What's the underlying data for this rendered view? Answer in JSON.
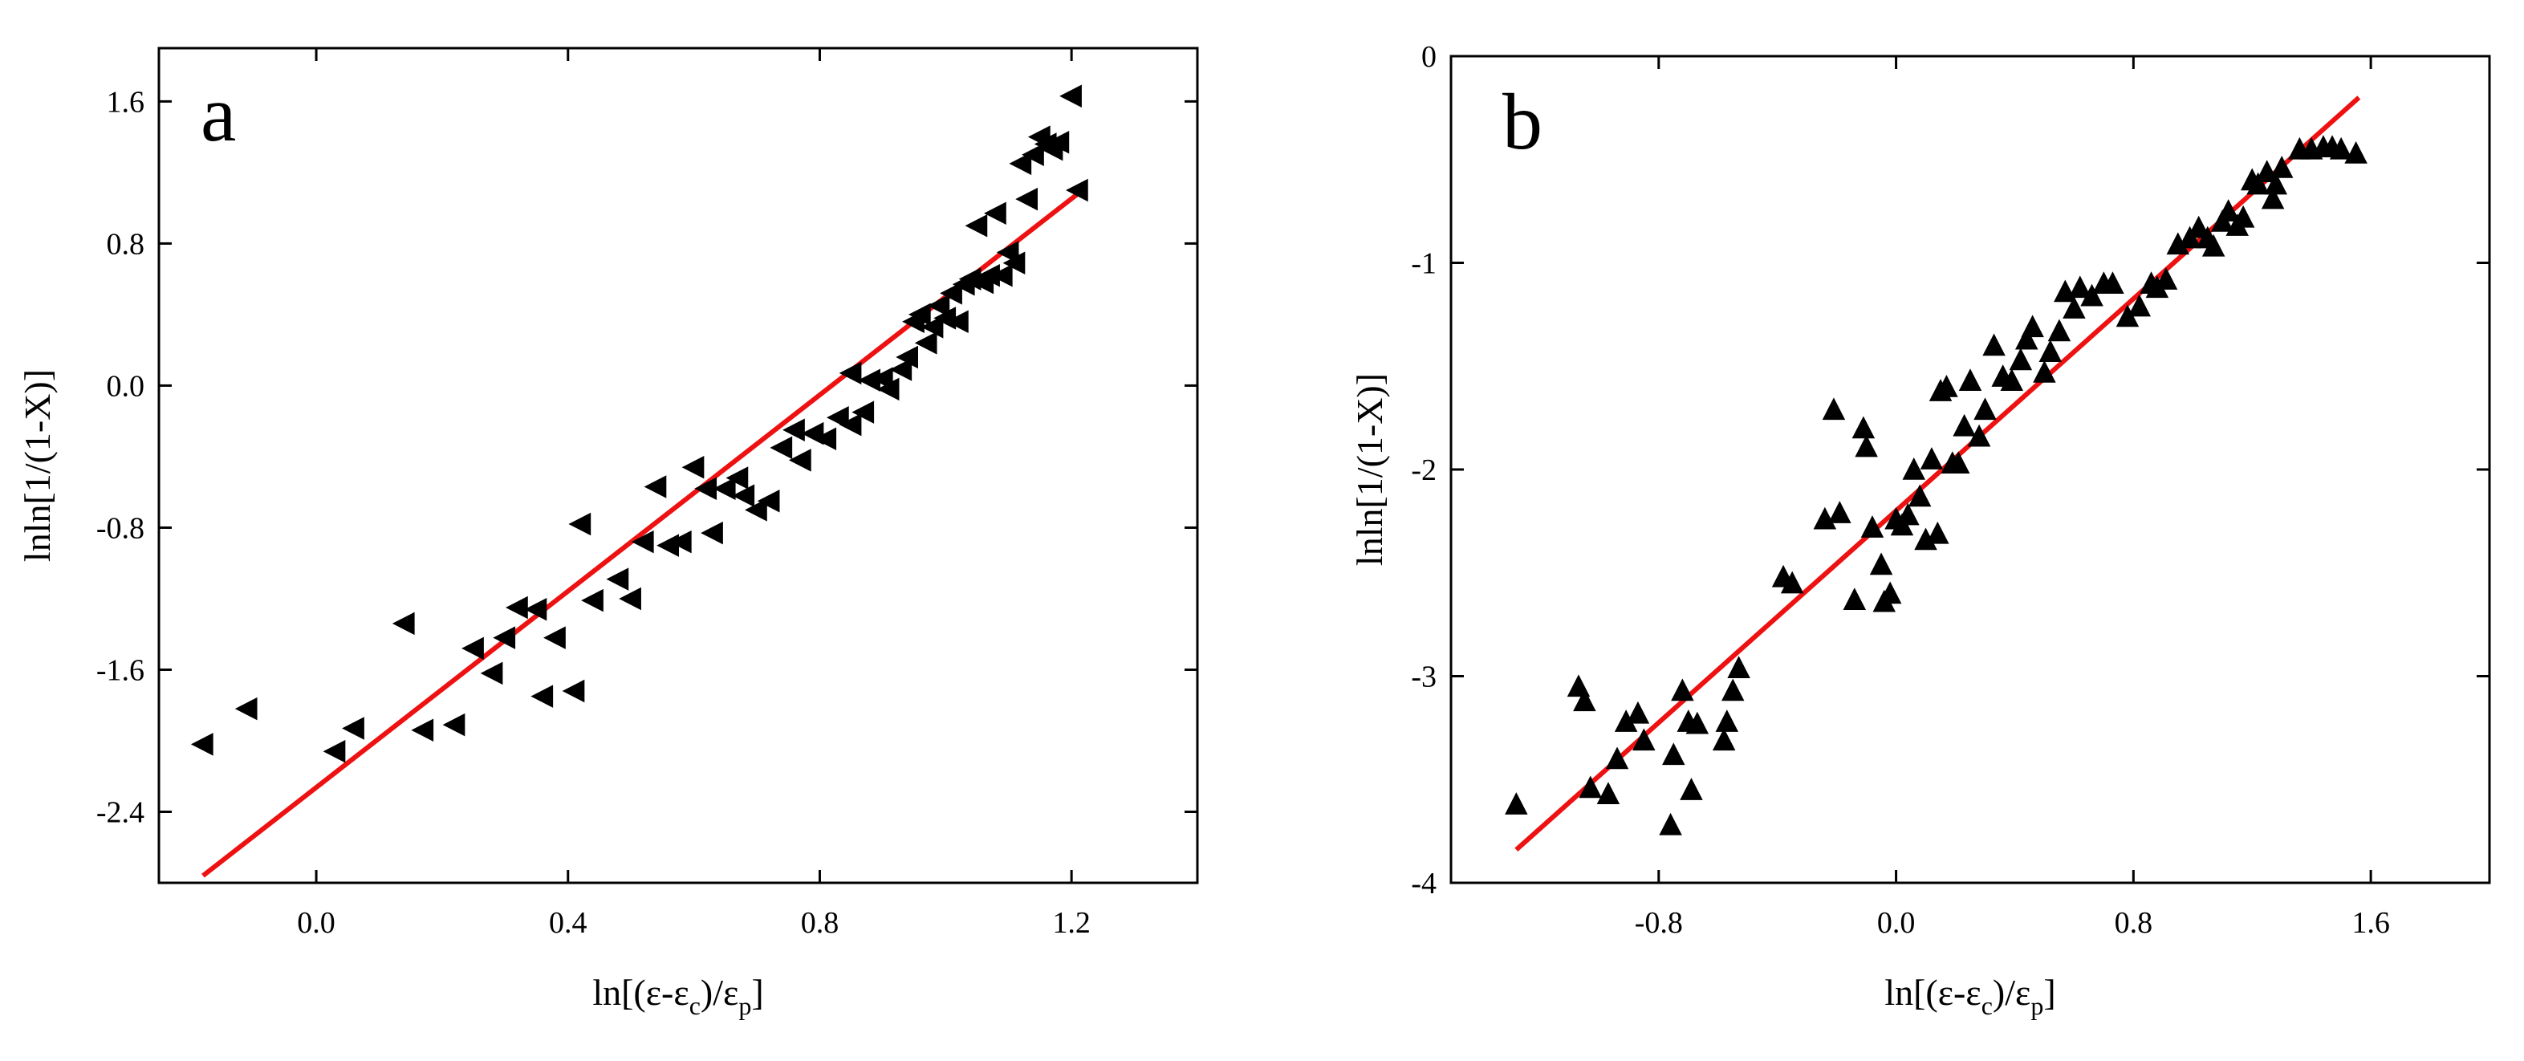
{
  "chart_data": [
    {
      "type": "scatter",
      "panel_label": "a",
      "xlabel_parts": [
        "ln[(ε-ε",
        "c",
        ")/ε",
        "p",
        "]"
      ],
      "ylabel": "lnln[1/(1-X)]",
      "xlim": [
        -0.25,
        1.4
      ],
      "ylim": [
        -2.8,
        1.9
      ],
      "xticks": [
        0.0,
        0.4,
        0.8,
        1.2
      ],
      "xtick_labels": [
        "0.0",
        "0.4",
        "0.8",
        "1.2"
      ],
      "yticks": [
        -2.4,
        -1.6,
        -0.8,
        0.0,
        0.8,
        1.6
      ],
      "ytick_labels": [
        "-2.4",
        "-1.6",
        "-0.8",
        "0.0",
        "0.8",
        "1.6"
      ],
      "marker": "left-triangle",
      "marker_color": "#000000",
      "fit_color": "#ee1111",
      "fit_line": {
        "x": [
          -0.18,
          1.21
        ],
        "y": [
          -2.76,
          1.08
        ]
      },
      "points": [
        [
          -0.18,
          -2.02
        ],
        [
          -0.11,
          -1.82
        ],
        [
          0.03,
          -2.06
        ],
        [
          0.06,
          -1.93
        ],
        [
          0.14,
          -1.34
        ],
        [
          0.17,
          -1.94
        ],
        [
          0.22,
          -1.91
        ],
        [
          0.25,
          -1.48
        ],
        [
          0.28,
          -1.62
        ],
        [
          0.3,
          -1.42
        ],
        [
          0.32,
          -1.25
        ],
        [
          0.35,
          -1.26
        ],
        [
          0.36,
          -1.75
        ],
        [
          0.38,
          -1.42
        ],
        [
          0.41,
          -1.72
        ],
        [
          0.42,
          -0.78
        ],
        [
          0.44,
          -1.21
        ],
        [
          0.48,
          -1.09
        ],
        [
          0.5,
          -1.2
        ],
        [
          0.52,
          -0.88
        ],
        [
          0.54,
          -0.57
        ],
        [
          0.56,
          -0.9
        ],
        [
          0.58,
          -0.88
        ],
        [
          0.6,
          -0.46
        ],
        [
          0.62,
          -0.58
        ],
        [
          0.63,
          -0.83
        ],
        [
          0.65,
          -0.58
        ],
        [
          0.67,
          -0.52
        ],
        [
          0.68,
          -0.62
        ],
        [
          0.7,
          -0.7
        ],
        [
          0.72,
          -0.65
        ],
        [
          0.74,
          -0.35
        ],
        [
          0.76,
          -0.25
        ],
        [
          0.77,
          -0.42
        ],
        [
          0.79,
          -0.27
        ],
        [
          0.81,
          -0.3
        ],
        [
          0.83,
          -0.18
        ],
        [
          0.85,
          -0.22
        ],
        [
          0.85,
          0.07
        ],
        [
          0.87,
          -0.15
        ],
        [
          0.88,
          0.03
        ],
        [
          0.9,
          0.04
        ],
        [
          0.91,
          -0.02
        ],
        [
          0.93,
          0.09
        ],
        [
          0.94,
          0.16
        ],
        [
          0.95,
          0.36
        ],
        [
          0.96,
          0.4
        ],
        [
          0.97,
          0.24
        ],
        [
          0.98,
          0.33
        ],
        [
          0.99,
          0.45
        ],
        [
          1.0,
          0.38
        ],
        [
          1.01,
          0.52
        ],
        [
          1.02,
          0.36
        ],
        [
          1.03,
          0.57
        ],
        [
          1.04,
          0.6
        ],
        [
          1.05,
          0.9
        ],
        [
          1.06,
          0.58
        ],
        [
          1.07,
          0.62
        ],
        [
          1.08,
          0.97
        ],
        [
          1.09,
          0.62
        ],
        [
          1.1,
          0.75
        ],
        [
          1.11,
          0.69
        ],
        [
          1.12,
          1.25
        ],
        [
          1.13,
          1.05
        ],
        [
          1.14,
          1.3
        ],
        [
          1.15,
          1.4
        ],
        [
          1.16,
          1.36
        ],
        [
          1.17,
          1.33
        ],
        [
          1.18,
          1.37
        ],
        [
          1.2,
          1.63
        ],
        [
          1.21,
          1.1
        ]
      ]
    },
    {
      "type": "scatter",
      "panel_label": "b",
      "xlabel_parts": [
        "ln[(ε-ε",
        "c",
        ")/ε",
        "p",
        "]"
      ],
      "ylabel": "lnln[1/(1-X)]",
      "xlim": [
        -1.5,
        2.0
      ],
      "ylim": [
        -4.0,
        0.0
      ],
      "xticks": [
        -0.8,
        0.0,
        0.8,
        1.6
      ],
      "xtick_labels": [
        "-0.8",
        "0.0",
        "0.8",
        "1.6"
      ],
      "yticks": [
        -4,
        -3,
        -2,
        -1,
        0
      ],
      "ytick_labels": [
        "-4",
        "-3",
        "-2",
        "-1",
        "0"
      ],
      "marker": "up-triangle",
      "marker_color": "#000000",
      "fit_color": "#ee1111",
      "fit_line": {
        "x": [
          -1.28,
          1.56
        ],
        "y": [
          -3.84,
          -0.2
        ]
      },
      "points": [
        [
          -1.28,
          -3.62
        ],
        [
          -1.07,
          -3.05
        ],
        [
          -1.05,
          -3.12
        ],
        [
          -1.03,
          -3.54
        ],
        [
          -0.97,
          -3.57
        ],
        [
          -0.94,
          -3.4
        ],
        [
          -0.91,
          -3.22
        ],
        [
          -0.87,
          -3.18
        ],
        [
          -0.85,
          -3.31
        ],
        [
          -0.76,
          -3.72
        ],
        [
          -0.75,
          -3.38
        ],
        [
          -0.72,
          -3.07
        ],
        [
          -0.7,
          -3.22
        ],
        [
          -0.69,
          -3.55
        ],
        [
          -0.67,
          -3.23
        ],
        [
          -0.58,
          -3.31
        ],
        [
          -0.57,
          -3.22
        ],
        [
          -0.55,
          -3.07
        ],
        [
          -0.53,
          -2.96
        ],
        [
          -0.38,
          -2.52
        ],
        [
          -0.35,
          -2.55
        ],
        [
          -0.24,
          -2.24
        ],
        [
          -0.21,
          -1.71
        ],
        [
          -0.19,
          -2.21
        ],
        [
          -0.14,
          -2.63
        ],
        [
          -0.11,
          -1.8
        ],
        [
          -0.1,
          -1.89
        ],
        [
          -0.08,
          -2.28
        ],
        [
          -0.05,
          -2.46
        ],
        [
          -0.04,
          -2.64
        ],
        [
          -0.02,
          -2.6
        ],
        [
          0.0,
          -2.24
        ],
        [
          0.02,
          -2.27
        ],
        [
          0.04,
          -2.22
        ],
        [
          0.06,
          -2.0
        ],
        [
          0.08,
          -2.13
        ],
        [
          0.1,
          -2.34
        ],
        [
          0.12,
          -1.95
        ],
        [
          0.14,
          -2.31
        ],
        [
          0.15,
          -1.62
        ],
        [
          0.17,
          -1.6
        ],
        [
          0.19,
          -1.97
        ],
        [
          0.21,
          -1.97
        ],
        [
          0.23,
          -1.79
        ],
        [
          0.25,
          -1.57
        ],
        [
          0.28,
          -1.84
        ],
        [
          0.3,
          -1.71
        ],
        [
          0.33,
          -1.4
        ],
        [
          0.36,
          -1.55
        ],
        [
          0.39,
          -1.57
        ],
        [
          0.42,
          -1.47
        ],
        [
          0.44,
          -1.37
        ],
        [
          0.46,
          -1.31
        ],
        [
          0.5,
          -1.53
        ],
        [
          0.52,
          -1.43
        ],
        [
          0.55,
          -1.33
        ],
        [
          0.57,
          -1.14
        ],
        [
          0.6,
          -1.22
        ],
        [
          0.62,
          -1.12
        ],
        [
          0.66,
          -1.16
        ],
        [
          0.7,
          -1.1
        ],
        [
          0.73,
          -1.1
        ],
        [
          0.78,
          -1.26
        ],
        [
          0.82,
          -1.21
        ],
        [
          0.86,
          -1.1
        ],
        [
          0.88,
          -1.12
        ],
        [
          0.91,
          -1.08
        ],
        [
          0.95,
          -0.91
        ],
        [
          0.99,
          -0.88
        ],
        [
          1.02,
          -0.83
        ],
        [
          1.05,
          -0.88
        ],
        [
          1.07,
          -0.92
        ],
        [
          1.1,
          -0.8
        ],
        [
          1.12,
          -0.75
        ],
        [
          1.15,
          -0.82
        ],
        [
          1.17,
          -0.78
        ],
        [
          1.2,
          -0.6
        ],
        [
          1.22,
          -0.62
        ],
        [
          1.25,
          -0.56
        ],
        [
          1.27,
          -0.69
        ],
        [
          1.28,
          -0.62
        ],
        [
          1.3,
          -0.54
        ],
        [
          1.36,
          -0.45
        ],
        [
          1.4,
          -0.45
        ],
        [
          1.44,
          -0.44
        ],
        [
          1.47,
          -0.44
        ],
        [
          1.5,
          -0.45
        ],
        [
          1.55,
          -0.47
        ]
      ]
    }
  ]
}
